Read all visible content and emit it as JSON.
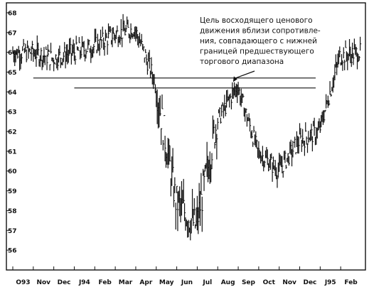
{
  "chart_data": {
    "type": "bar",
    "subtype": "high-low price bars",
    "title": "",
    "xlabel": "",
    "ylabel": "",
    "ylim": [
      55,
      68.5
    ],
    "y_ticks": [
      56,
      57,
      58,
      59,
      60,
      61,
      62,
      63,
      64,
      65,
      66,
      67,
      68
    ],
    "x_tick_labels": [
      "O93",
      "Nov",
      "Dec",
      "J94",
      "Feb",
      "Mar",
      "Apr",
      "May",
      "Jun",
      "Jul",
      "Aug",
      "Sep",
      "Oct",
      "Nov",
      "Dec",
      "J95",
      "Feb"
    ],
    "grid": false,
    "legend": "none",
    "series": [
      {
        "values_by_month_close": [
          66.0,
          65.7,
          66.0,
          66.3,
          66.9,
          67.2,
          64.5,
          58.5,
          57.2,
          62.5,
          64.3,
          61.0,
          60.0,
          61.5,
          62.0,
          65.8,
          66.0
        ]
      }
    ],
    "reference_lines": [
      {
        "y": 64.7,
        "from": "Nov",
        "to": "end"
      },
      {
        "y": 64.2,
        "from": "J94",
        "to": "end"
      }
    ],
    "annotation": {
      "lines": [
        "Цель восходящего ценового",
        "движения вблизи сопротивле-",
        "ния, совпадающего с нижней",
        "границей предшествующего",
        "торгового диапазона"
      ],
      "points_to_month": "Aug",
      "points_to_value": 64.5
    }
  }
}
